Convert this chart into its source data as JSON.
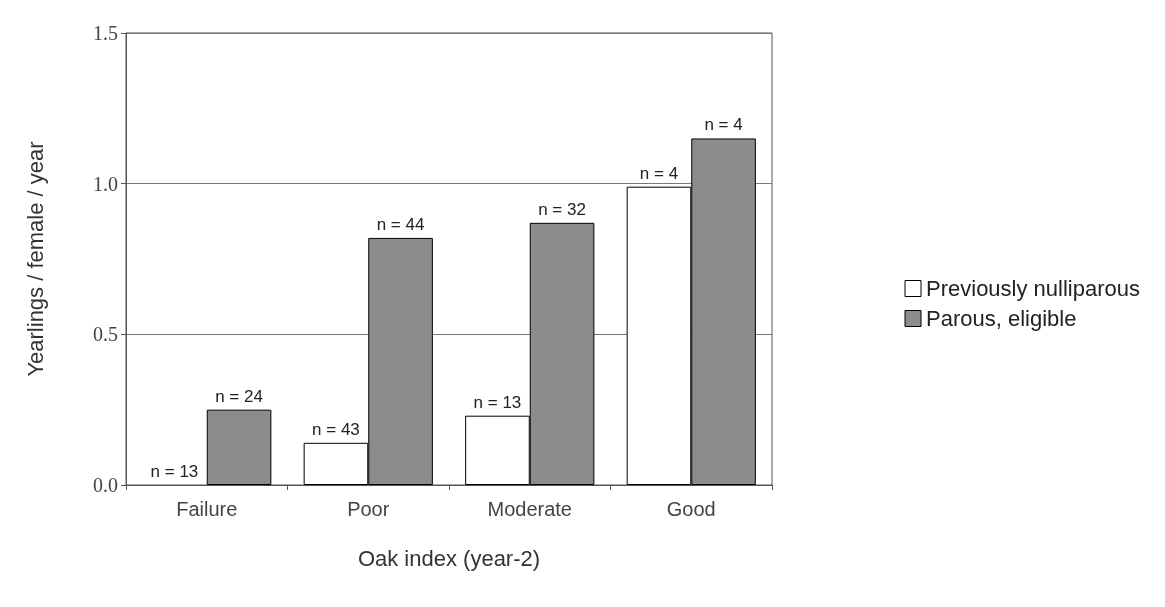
{
  "chart_data": {
    "type": "bar",
    "xlabel": "Oak index (year-2)",
    "ylabel": "Yearlings / female / year",
    "categories": [
      "Failure",
      "Poor",
      "Moderate",
      "Good"
    ],
    "series": [
      {
        "name": "Previously nulliparous",
        "color": "#ffffff",
        "values": [
          0,
          0.14,
          0.23,
          0.99
        ]
      },
      {
        "name": "Parous, eligible",
        "color": "#8c8c8c",
        "values": [
          0.25,
          0.82,
          0.87,
          1.15
        ]
      }
    ],
    "annotations": [
      {
        "text": "n = 13",
        "x": "Failure",
        "y": 0
      },
      {
        "text": "n = 24",
        "x": "Failure",
        "y": 0.25
      },
      {
        "text": "n = 43",
        "x": "Poor",
        "y": 0.14
      },
      {
        "text": "n = 44",
        "x": "Poor",
        "y": 0.82
      },
      {
        "text": "n = 13",
        "x": "Moderate",
        "y": 0.23
      },
      {
        "text": "n = 32",
        "x": "Moderate",
        "y": 0.87
      },
      {
        "text": "n = 4",
        "x": "Good",
        "y": 0.99
      },
      {
        "text": "n = 4",
        "x": "Good",
        "y": 1.15
      }
    ],
    "ylim": [
      0,
      1.5
    ],
    "yticks": [
      {
        "value": 0,
        "label": "0.0"
      },
      {
        "value": 0.5,
        "label": "0.5"
      },
      {
        "value": 1,
        "label": "1.0"
      },
      {
        "value": 1.5,
        "label": "1.5"
      }
    ],
    "grid": "y",
    "legend": "right"
  }
}
